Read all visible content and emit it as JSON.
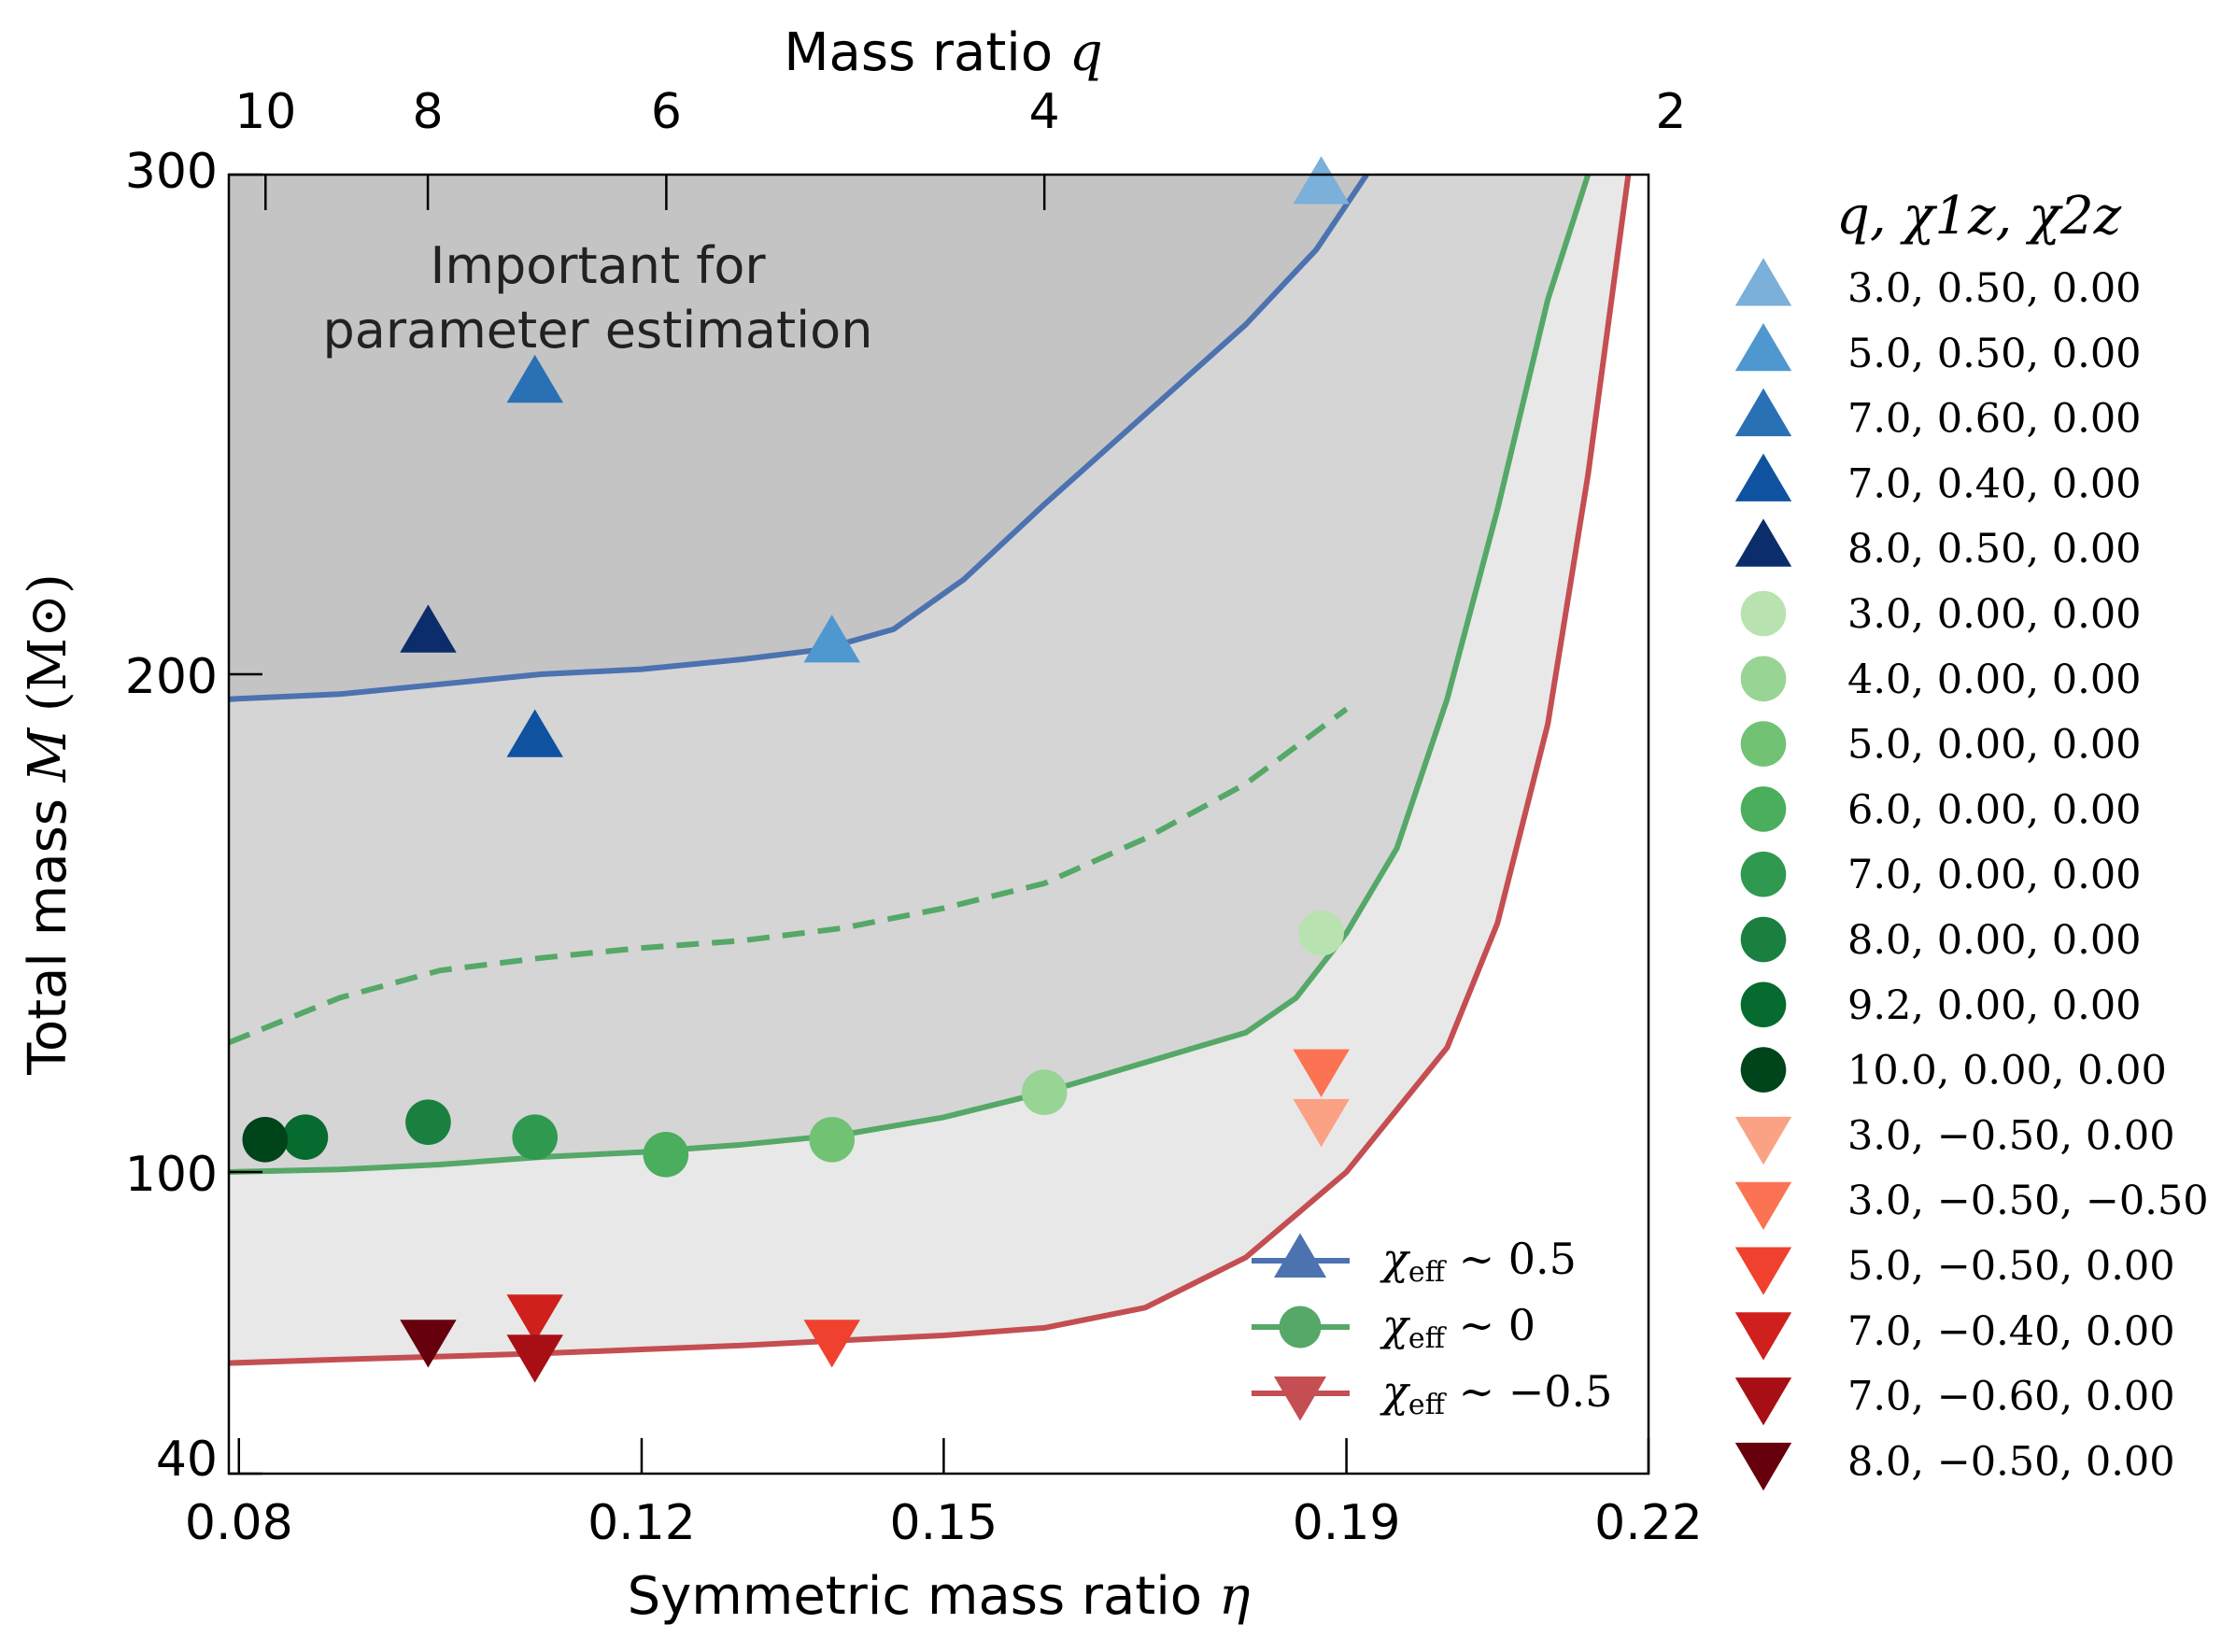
{
  "chart_data": {
    "type": "scatter",
    "xlabel_text": "Symmetric mass ratio",
    "xlabel_symbol": "η",
    "ylabel_text": "Total mass",
    "ylabel_symbol": "M",
    "ylabel_unit": "(M⊙)",
    "top_axis_text": "Mass ratio",
    "top_axis_symbol": "q",
    "xlim": [
      0.079,
      0.22
    ],
    "y_ticks": [
      {
        "value": 300,
        "label": "300"
      },
      {
        "value": 200,
        "label": "200"
      },
      {
        "value": 100,
        "label": "100"
      },
      {
        "value": 40,
        "label": "40"
      }
    ],
    "x_ticks": [
      {
        "value": 0.08,
        "label": "0.08"
      },
      {
        "value": 0.12,
        "label": "0.12"
      },
      {
        "value": 0.15,
        "label": "0.15"
      },
      {
        "value": 0.19,
        "label": "0.19"
      },
      {
        "value": 0.22,
        "label": "0.22"
      }
    ],
    "top_ticks": [
      {
        "q": 10,
        "label": "10"
      },
      {
        "q": 8,
        "label": "8"
      },
      {
        "q": 6,
        "label": "6"
      },
      {
        "q": 4,
        "label": "4"
      },
      {
        "q": 2,
        "label": "2"
      }
    ],
    "annotation": [
      "Important for",
      "parameter estimation"
    ],
    "legend_title": "q, χ1z, χ2z",
    "curves": [
      {
        "name": "blue",
        "color": "#4c72b0",
        "dashed": false,
        "points": [
          [
            0.079,
            195
          ],
          [
            0.09,
            196
          ],
          [
            0.1,
            198
          ],
          [
            0.11,
            200
          ],
          [
            0.12,
            201
          ],
          [
            0.13,
            203
          ],
          [
            0.138,
            205
          ],
          [
            0.145,
            209
          ],
          [
            0.152,
            219
          ],
          [
            0.16,
            234
          ],
          [
            0.17,
            252
          ],
          [
            0.18,
            270
          ],
          [
            0.187,
            285
          ],
          [
            0.192,
            300
          ]
        ]
      },
      {
        "name": "green",
        "color": "#55a868",
        "dashed": false,
        "points": [
          [
            0.079,
            100
          ],
          [
            0.09,
            100.5
          ],
          [
            0.1,
            101.5
          ],
          [
            0.11,
            103
          ],
          [
            0.12,
            104
          ],
          [
            0.13,
            105.5
          ],
          [
            0.14,
            107.5
          ],
          [
            0.15,
            111
          ],
          [
            0.16,
            116
          ],
          [
            0.17,
            122
          ],
          [
            0.18,
            128
          ],
          [
            0.185,
            135
          ],
          [
            0.19,
            148
          ],
          [
            0.195,
            165
          ],
          [
            0.2,
            195
          ],
          [
            0.205,
            233
          ],
          [
            0.21,
            275
          ],
          [
            0.214,
            300
          ]
        ]
      },
      {
        "name": "green-dashed",
        "color": "#55a868",
        "dashed": true,
        "points": [
          [
            0.079,
            126
          ],
          [
            0.09,
            135
          ],
          [
            0.1,
            140.5
          ],
          [
            0.11,
            143
          ],
          [
            0.12,
            145
          ],
          [
            0.13,
            146.5
          ],
          [
            0.14,
            149
          ],
          [
            0.15,
            153
          ],
          [
            0.16,
            158
          ],
          [
            0.17,
            167
          ],
          [
            0.18,
            178
          ],
          [
            0.19,
            193
          ]
        ]
      },
      {
        "name": "red",
        "color": "#c44e52",
        "dashed": false,
        "points": [
          [
            0.079,
            62
          ],
          [
            0.09,
            62.7
          ],
          [
            0.1,
            63.3
          ],
          [
            0.11,
            63.9
          ],
          [
            0.12,
            64.7
          ],
          [
            0.13,
            65.5
          ],
          [
            0.14,
            66.5
          ],
          [
            0.15,
            67.5
          ],
          [
            0.16,
            69
          ],
          [
            0.17,
            73
          ],
          [
            0.18,
            83
          ],
          [
            0.19,
            100
          ],
          [
            0.2,
            125
          ],
          [
            0.205,
            150
          ],
          [
            0.21,
            190
          ],
          [
            0.214,
            240
          ],
          [
            0.218,
            300
          ]
        ]
      }
    ],
    "points": [
      {
        "label": "3.0, 0.50, 0.00",
        "marker": "triangle-up",
        "color": "#7ab0d9",
        "eta": 0.1875,
        "mass": 300
      },
      {
        "label": "5.0, 0.50, 0.00",
        "marker": "triangle-up",
        "color": "#4f98cf",
        "eta": 0.1389,
        "mass": 206
      },
      {
        "label": "7.0, 0.60, 0.00",
        "marker": "triangle-up",
        "color": "#2a70b5",
        "eta": 0.1094,
        "mass": 258
      },
      {
        "label": "7.0, 0.40, 0.00",
        "marker": "triangle-up",
        "color": "#0f52a0",
        "eta": 0.1094,
        "mass": 187
      },
      {
        "label": "8.0, 0.50, 0.00",
        "marker": "triangle-up",
        "color": "#0b2d6b",
        "eta": 0.0988,
        "mass": 208
      },
      {
        "label": "3.0, 0.00, 0.00",
        "marker": "circle",
        "color": "#b9e2b1",
        "eta": 0.1875,
        "mass": 148
      },
      {
        "label": "4.0, 0.00, 0.00",
        "marker": "circle",
        "color": "#98d493",
        "eta": 0.16,
        "mass": 116
      },
      {
        "label": "5.0, 0.00, 0.00",
        "marker": "circle",
        "color": "#72c274",
        "eta": 0.1389,
        "mass": 106.5
      },
      {
        "label": "6.0, 0.00, 0.00",
        "marker": "circle",
        "color": "#4aae5d",
        "eta": 0.1224,
        "mass": 103.5
      },
      {
        "label": "7.0, 0.00, 0.00",
        "marker": "circle",
        "color": "#2f9a4f",
        "eta": 0.1094,
        "mass": 107
      },
      {
        "label": "8.0, 0.00, 0.00",
        "marker": "circle",
        "color": "#1a8040",
        "eta": 0.0988,
        "mass": 110
      },
      {
        "label": "9.2, 0.00, 0.00",
        "marker": "circle",
        "color": "#066b2e",
        "eta": 0.0866,
        "mass": 107
      },
      {
        "label": "10.0, 0.00, 0.00",
        "marker": "circle",
        "color": "#00441b",
        "eta": 0.0826,
        "mass": 106.5
      },
      {
        "label": "3.0, −0.50, 0.00",
        "marker": "triangle-down",
        "color": "#fba184",
        "eta": 0.1875,
        "mass": 111
      },
      {
        "label": "3.0, −0.50, −0.50",
        "marker": "triangle-down",
        "color": "#fb7352",
        "eta": 0.1875,
        "mass": 121
      },
      {
        "label": "5.0, −0.50, 0.00",
        "marker": "triangle-down",
        "color": "#f0412e",
        "eta": 0.1389,
        "mass": 67
      },
      {
        "label": "7.0, −0.40, 0.00",
        "marker": "triangle-down",
        "color": "#d0201d",
        "eta": 0.1094,
        "mass": 72
      },
      {
        "label": "7.0, −0.60, 0.00",
        "marker": "triangle-down",
        "color": "#a70f15",
        "eta": 0.1094,
        "mass": 64
      },
      {
        "label": "8.0, −0.50, 0.00",
        "marker": "triangle-down",
        "color": "#67000d",
        "eta": 0.0988,
        "mass": 67
      }
    ],
    "line_legend": [
      {
        "marker": "triangle-up",
        "color": "#4c72b0",
        "symbol": "χ",
        "sub": "eff",
        "suffix": " ∼ 0.5"
      },
      {
        "marker": "circle",
        "color": "#55a868",
        "symbol": "χ",
        "sub": "eff",
        "suffix": " ∼ 0"
      },
      {
        "marker": "triangle-down",
        "color": "#c44e52",
        "symbol": "χ",
        "sub": "eff",
        "suffix": " ∼ −0.5"
      }
    ]
  }
}
